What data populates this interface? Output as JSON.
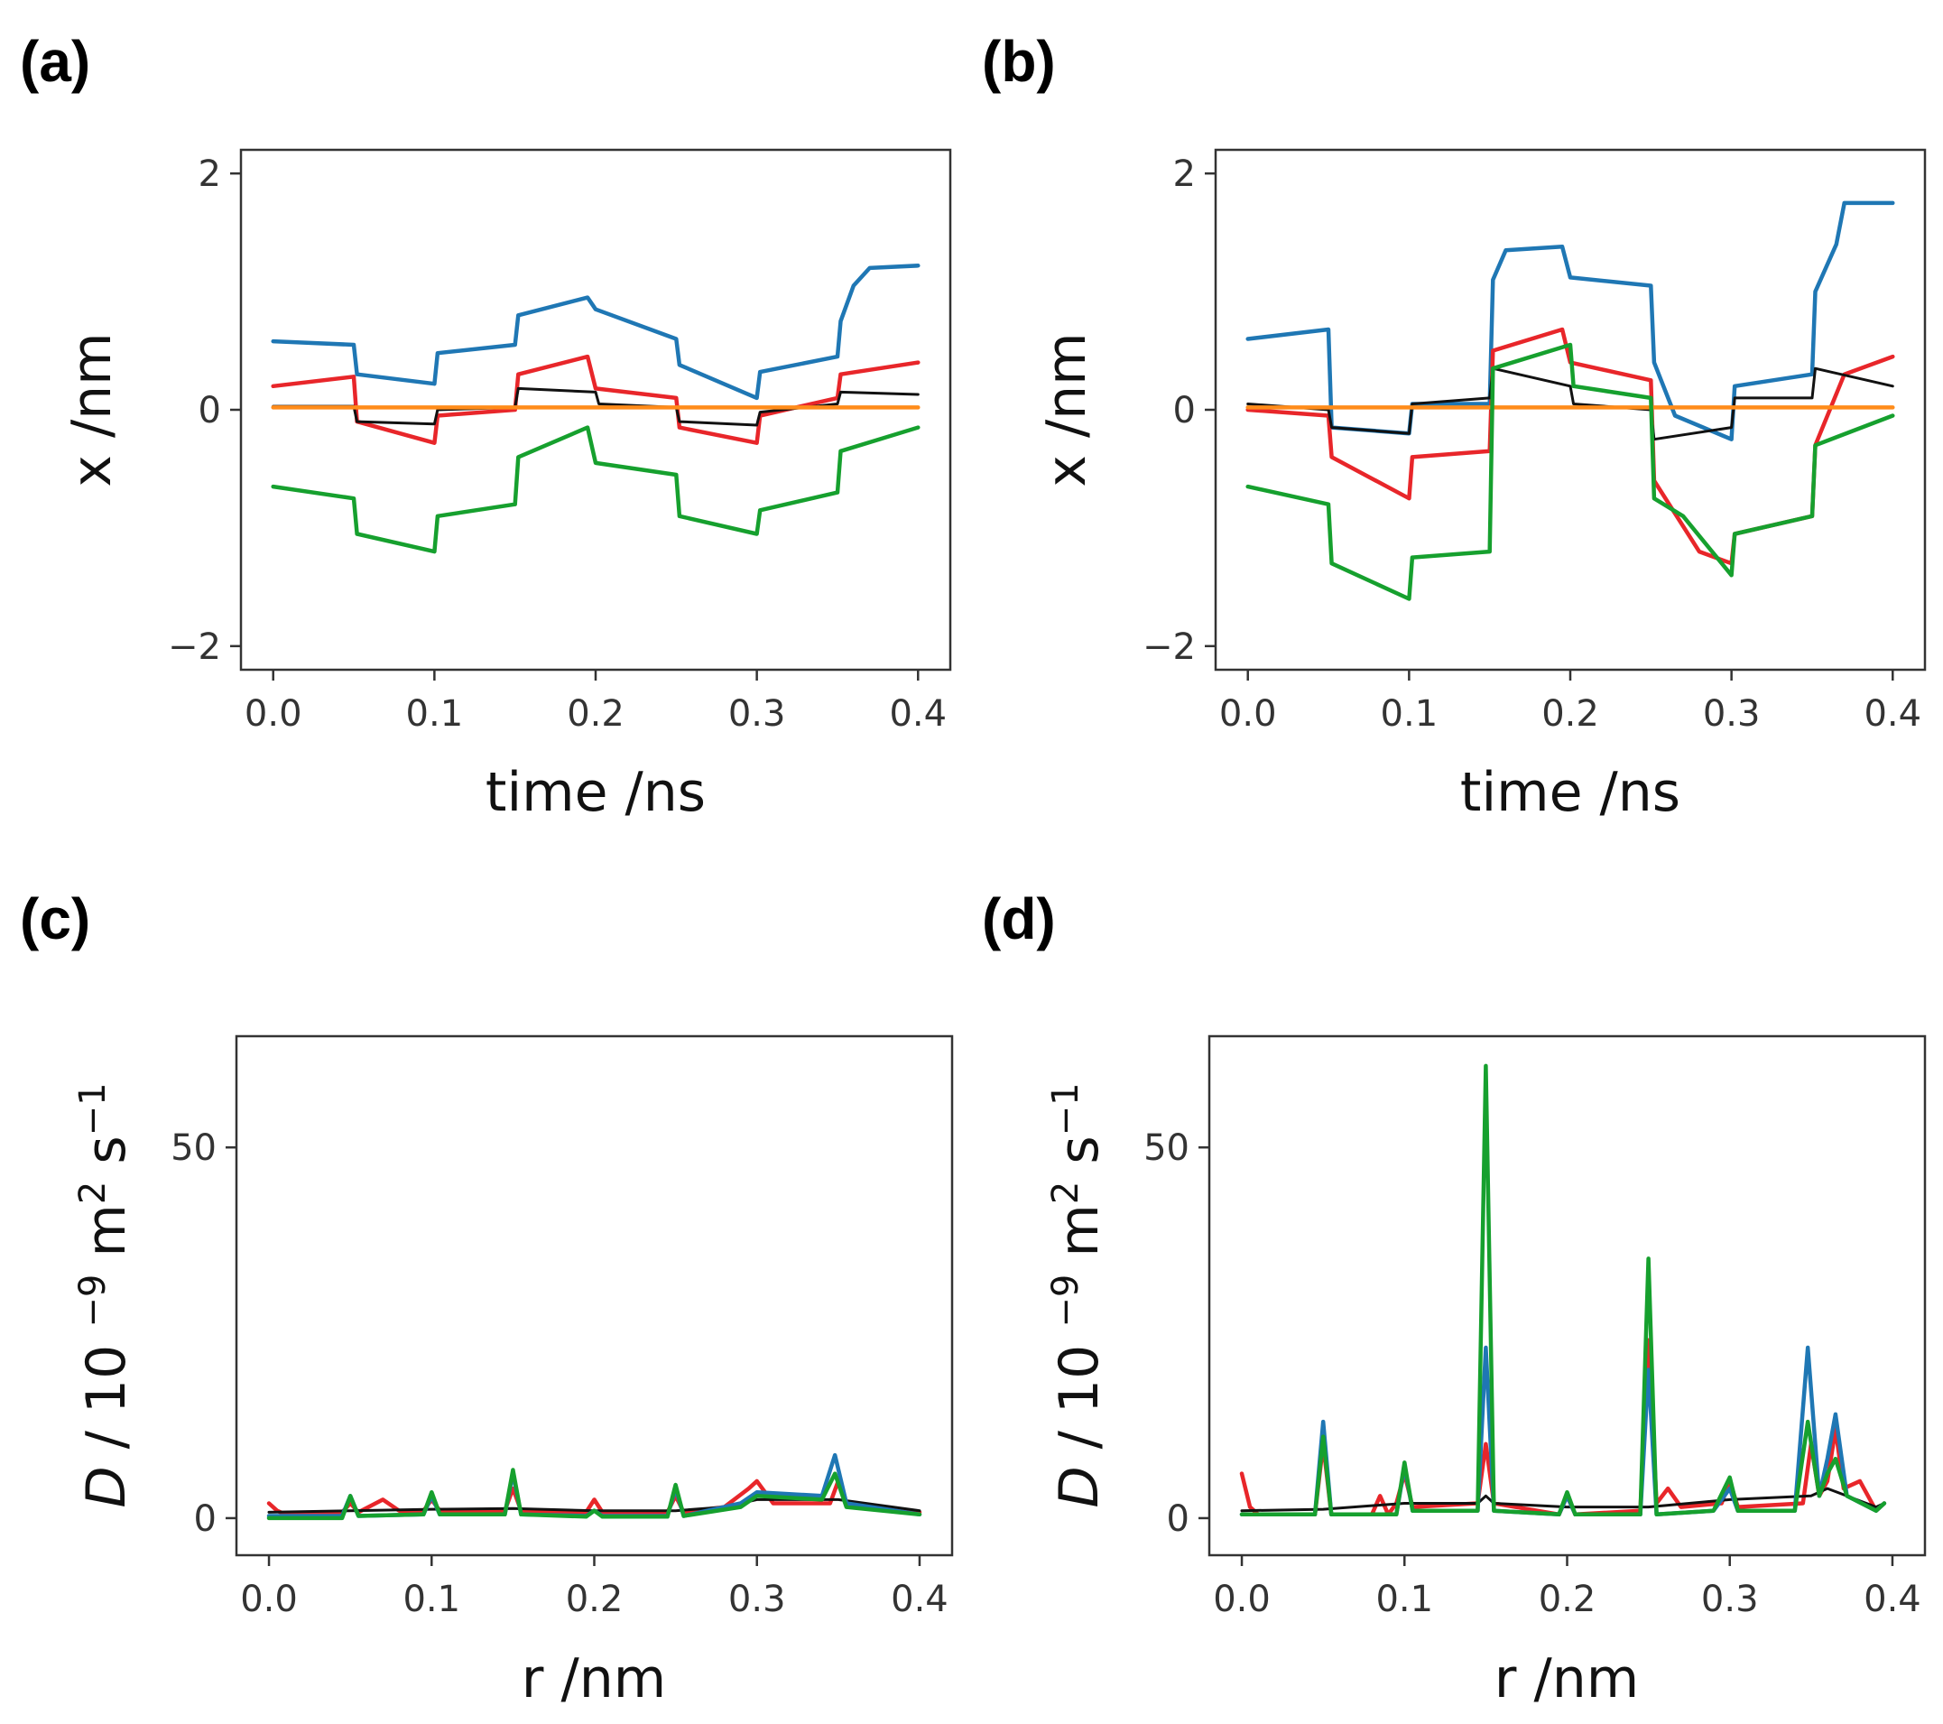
{
  "figure": {
    "colors": {
      "blue": "#1f77b4",
      "red": "#e8262a",
      "black": "#111111",
      "orange": "#ff8c1a",
      "green": "#16a02e"
    }
  },
  "chart_data": [
    {
      "panel": "(a)",
      "type": "line",
      "xlabel": "time /ns",
      "ylabel": "x /nm",
      "xlim": [
        -0.02,
        0.42
      ],
      "ylim": [
        -2.2,
        2.2
      ],
      "xticks": [
        0.0,
        0.1,
        0.2,
        0.3,
        0.4
      ],
      "xtick_labels": [
        "0.0",
        "0.1",
        "0.2",
        "0.3",
        "0.4"
      ],
      "yticks": [
        -2,
        0,
        2
      ],
      "ytick_labels": [
        "−2",
        "0",
        "2"
      ],
      "series": [
        {
          "name": "blue",
          "color": "#1f77b4",
          "x": [
            0,
            0.05,
            0.052,
            0.1,
            0.102,
            0.15,
            0.152,
            0.195,
            0.2,
            0.25,
            0.252,
            0.3,
            0.302,
            0.35,
            0.352,
            0.36,
            0.37,
            0.4
          ],
          "y": [
            0.58,
            0.55,
            0.3,
            0.22,
            0.48,
            0.55,
            0.8,
            0.95,
            0.85,
            0.6,
            0.38,
            0.1,
            0.32,
            0.45,
            0.75,
            1.05,
            1.2,
            1.22
          ]
        },
        {
          "name": "red",
          "color": "#e8262a",
          "x": [
            0,
            0.05,
            0.052,
            0.1,
            0.102,
            0.15,
            0.152,
            0.195,
            0.2,
            0.25,
            0.252,
            0.3,
            0.302,
            0.35,
            0.352,
            0.4
          ],
          "y": [
            0.2,
            0.28,
            -0.1,
            -0.28,
            -0.05,
            0.0,
            0.3,
            0.45,
            0.18,
            0.1,
            -0.15,
            -0.28,
            -0.05,
            0.1,
            0.3,
            0.4
          ]
        },
        {
          "name": "black",
          "color": "#111111",
          "x": [
            0,
            0.05,
            0.052,
            0.1,
            0.102,
            0.15,
            0.152,
            0.2,
            0.202,
            0.25,
            0.252,
            0.3,
            0.302,
            0.35,
            0.352,
            0.4
          ],
          "y": [
            0.03,
            0.03,
            -0.1,
            -0.12,
            0.0,
            0.02,
            0.18,
            0.15,
            0.05,
            0.02,
            -0.1,
            -0.13,
            -0.02,
            0.05,
            0.15,
            0.13
          ]
        },
        {
          "name": "orange",
          "color": "#ff8c1a",
          "x": [
            0,
            0.4
          ],
          "y": [
            0.02,
            0.02
          ]
        },
        {
          "name": "green",
          "color": "#16a02e",
          "x": [
            0,
            0.05,
            0.052,
            0.1,
            0.102,
            0.15,
            0.152,
            0.195,
            0.2,
            0.25,
            0.252,
            0.3,
            0.302,
            0.35,
            0.352,
            0.4
          ],
          "y": [
            -0.65,
            -0.75,
            -1.05,
            -1.2,
            -0.9,
            -0.8,
            -0.4,
            -0.15,
            -0.45,
            -0.55,
            -0.9,
            -1.05,
            -0.85,
            -0.7,
            -0.35,
            -0.15
          ]
        }
      ]
    },
    {
      "panel": "(b)",
      "type": "line",
      "xlabel": "time /ns",
      "ylabel": "x /nm",
      "xlim": [
        -0.02,
        0.42
      ],
      "ylim": [
        -2.2,
        2.2
      ],
      "xticks": [
        0.0,
        0.1,
        0.2,
        0.3,
        0.4
      ],
      "xtick_labels": [
        "0.0",
        "0.1",
        "0.2",
        "0.3",
        "0.4"
      ],
      "yticks": [
        -2,
        0,
        2
      ],
      "ytick_labels": [
        "−2",
        "0",
        "2"
      ],
      "series": [
        {
          "name": "blue",
          "color": "#1f77b4",
          "x": [
            0,
            0.05,
            0.052,
            0.1,
            0.102,
            0.15,
            0.152,
            0.16,
            0.195,
            0.2,
            0.25,
            0.252,
            0.265,
            0.3,
            0.302,
            0.35,
            0.352,
            0.365,
            0.37,
            0.4
          ],
          "y": [
            0.6,
            0.68,
            -0.15,
            -0.2,
            0.05,
            0.05,
            1.1,
            1.35,
            1.38,
            1.12,
            1.05,
            0.4,
            -0.05,
            -0.25,
            0.2,
            0.3,
            1.0,
            1.4,
            1.75,
            1.75
          ]
        },
        {
          "name": "red",
          "color": "#e8262a",
          "x": [
            0,
            0.05,
            0.052,
            0.1,
            0.102,
            0.15,
            0.152,
            0.195,
            0.2,
            0.25,
            0.252,
            0.28,
            0.3,
            0.302,
            0.35,
            0.352,
            0.37,
            0.4
          ],
          "y": [
            0.0,
            -0.05,
            -0.4,
            -0.75,
            -0.4,
            -0.35,
            0.5,
            0.68,
            0.4,
            0.25,
            -0.6,
            -1.2,
            -1.3,
            -1.05,
            -0.9,
            -0.3,
            0.3,
            0.45
          ]
        },
        {
          "name": "black",
          "color": "#111111",
          "x": [
            0,
            0.05,
            0.052,
            0.1,
            0.102,
            0.15,
            0.152,
            0.2,
            0.202,
            0.25,
            0.252,
            0.3,
            0.302,
            0.35,
            0.352,
            0.4
          ],
          "y": [
            0.05,
            0.0,
            -0.15,
            -0.2,
            0.05,
            0.1,
            0.35,
            0.2,
            0.05,
            0.0,
            -0.25,
            -0.15,
            0.1,
            0.1,
            0.35,
            0.2
          ]
        },
        {
          "name": "orange",
          "color": "#ff8c1a",
          "x": [
            0,
            0.4
          ],
          "y": [
            0.02,
            0.02
          ]
        },
        {
          "name": "green",
          "color": "#16a02e",
          "x": [
            0,
            0.05,
            0.052,
            0.1,
            0.102,
            0.15,
            0.152,
            0.2,
            0.202,
            0.25,
            0.252,
            0.27,
            0.3,
            0.302,
            0.35,
            0.352,
            0.4
          ],
          "y": [
            -0.65,
            -0.8,
            -1.3,
            -1.6,
            -1.25,
            -1.2,
            0.35,
            0.55,
            0.2,
            0.1,
            -0.75,
            -0.9,
            -1.4,
            -1.05,
            -0.9,
            -0.3,
            -0.05
          ]
        }
      ]
    },
    {
      "panel": "(c)",
      "type": "line",
      "xlabel": "r /nm",
      "ylabel": "D / 10 −9 m2 s−1",
      "xlim": [
        -0.02,
        0.42
      ],
      "ylim": [
        -5,
        65
      ],
      "xticks": [
        0.0,
        0.1,
        0.2,
        0.3,
        0.4
      ],
      "xtick_labels": [
        "0.0",
        "0.1",
        "0.2",
        "0.3",
        "0.4"
      ],
      "yticks": [
        0,
        50
      ],
      "ytick_labels": [
        "0",
        "50"
      ],
      "series": [
        {
          "name": "red",
          "color": "#e8262a",
          "x": [
            0,
            0.005,
            0.01,
            0.045,
            0.05,
            0.055,
            0.07,
            0.08,
            0.095,
            0.1,
            0.105,
            0.145,
            0.15,
            0.155,
            0.195,
            0.2,
            0.205,
            0.245,
            0.25,
            0.255,
            0.28,
            0.295,
            0.3,
            0.31,
            0.345,
            0.35,
            0.355,
            0.4
          ],
          "y": [
            2,
            1,
            0.5,
            0.8,
            2,
            0.8,
            2.5,
            1,
            1,
            2.5,
            1,
            1,
            4,
            1,
            0.8,
            2.5,
            0.8,
            0.8,
            3,
            0.8,
            1.5,
            4,
            5,
            2,
            2,
            5,
            2,
            0.8
          ]
        },
        {
          "name": "black",
          "color": "#111111",
          "x": [
            0,
            0.05,
            0.1,
            0.15,
            0.2,
            0.25,
            0.28,
            0.3,
            0.35,
            0.4
          ],
          "y": [
            0.8,
            1,
            1.2,
            1.3,
            1,
            1,
            1.5,
            2.5,
            2.5,
            1
          ]
        },
        {
          "name": "blue",
          "color": "#1f77b4",
          "x": [
            0,
            0.045,
            0.05,
            0.055,
            0.095,
            0.1,
            0.105,
            0.145,
            0.15,
            0.155,
            0.195,
            0.2,
            0.205,
            0.245,
            0.25,
            0.255,
            0.29,
            0.3,
            0.34,
            0.348,
            0.355,
            0.4
          ],
          "y": [
            0.3,
            0.3,
            3,
            0.3,
            0.5,
            3,
            0.5,
            0.5,
            6,
            0.5,
            0.3,
            1,
            0.3,
            0.3,
            4,
            0.3,
            2,
            3.5,
            3,
            8.5,
            2,
            0.5
          ]
        },
        {
          "name": "green",
          "color": "#16a02e",
          "x": [
            0,
            0.045,
            0.05,
            0.055,
            0.095,
            0.1,
            0.105,
            0.145,
            0.15,
            0.155,
            0.195,
            0.2,
            0.205,
            0.245,
            0.25,
            0.255,
            0.29,
            0.3,
            0.34,
            0.348,
            0.355,
            0.4
          ],
          "y": [
            0,
            0,
            3,
            0.3,
            0.5,
            3.5,
            0.5,
            0.5,
            6.5,
            0.5,
            0.2,
            1,
            0.2,
            0.2,
            4.5,
            0.3,
            1.5,
            3,
            2.5,
            6,
            1.5,
            0.5
          ]
        }
      ]
    },
    {
      "panel": "(d)",
      "type": "line",
      "xlabel": "r /nm",
      "ylabel": "D / 10 −9 m2 s−1",
      "xlim": [
        -0.02,
        0.42
      ],
      "ylim": [
        -5,
        65
      ],
      "xticks": [
        0.0,
        0.1,
        0.2,
        0.3,
        0.4
      ],
      "xtick_labels": [
        "0.0",
        "0.1",
        "0.2",
        "0.3",
        "0.4"
      ],
      "yticks": [
        0,
        50
      ],
      "ytick_labels": [
        "0",
        "50"
      ],
      "series": [
        {
          "name": "red",
          "color": "#e8262a",
          "x": [
            0,
            0.005,
            0.01,
            0.045,
            0.05,
            0.055,
            0.08,
            0.085,
            0.09,
            0.095,
            0.1,
            0.105,
            0.145,
            0.15,
            0.155,
            0.195,
            0.2,
            0.205,
            0.245,
            0.25,
            0.255,
            0.262,
            0.27,
            0.295,
            0.3,
            0.305,
            0.345,
            0.35,
            0.355,
            0.36,
            0.365,
            0.37,
            0.38,
            0.39,
            0.395
          ],
          "y": [
            6,
            1.5,
            0.5,
            0.5,
            10,
            0.5,
            0.5,
            3,
            0.5,
            2,
            6,
            1.5,
            2,
            10,
            2,
            0.5,
            3,
            0.5,
            1,
            24,
            2,
            4,
            1.5,
            2,
            5,
            1.5,
            2,
            10,
            3,
            5,
            12,
            4,
            5,
            1,
            2
          ]
        },
        {
          "name": "black",
          "color": "#111111",
          "x": [
            0,
            0.05,
            0.1,
            0.145,
            0.15,
            0.155,
            0.2,
            0.25,
            0.3,
            0.35,
            0.36,
            0.39,
            0.395
          ],
          "y": [
            1,
            1.2,
            2,
            2,
            3,
            2,
            1.5,
            1.5,
            2.5,
            3,
            4,
            1.5,
            2
          ]
        },
        {
          "name": "blue",
          "color": "#1f77b4",
          "x": [
            0,
            0.045,
            0.05,
            0.055,
            0.095,
            0.1,
            0.105,
            0.145,
            0.15,
            0.155,
            0.195,
            0.2,
            0.205,
            0.245,
            0.25,
            0.255,
            0.29,
            0.3,
            0.305,
            0.34,
            0.348,
            0.355,
            0.36,
            0.365,
            0.372,
            0.39,
            0.395
          ],
          "y": [
            0.5,
            0.5,
            13,
            0.5,
            0.5,
            7,
            1,
            1,
            23,
            1,
            0.5,
            3,
            0.5,
            0.5,
            20,
            0.5,
            1,
            4,
            1,
            1,
            23,
            3,
            8,
            14,
            3,
            1,
            2
          ]
        },
        {
          "name": "green",
          "color": "#16a02e",
          "x": [
            0,
            0.045,
            0.05,
            0.055,
            0.095,
            0.1,
            0.105,
            0.145,
            0.15,
            0.155,
            0.195,
            0.2,
            0.205,
            0.245,
            0.25,
            0.255,
            0.29,
            0.3,
            0.305,
            0.34,
            0.348,
            0.355,
            0.36,
            0.365,
            0.372,
            0.39,
            0.395
          ],
          "y": [
            0.5,
            0.5,
            11,
            0.5,
            0.5,
            7.5,
            1,
            1,
            61,
            1,
            0.5,
            3.5,
            0.5,
            0.5,
            35,
            0.5,
            1,
            5.5,
            1,
            1,
            13,
            3,
            6,
            8,
            3,
            1,
            2
          ]
        }
      ]
    }
  ]
}
